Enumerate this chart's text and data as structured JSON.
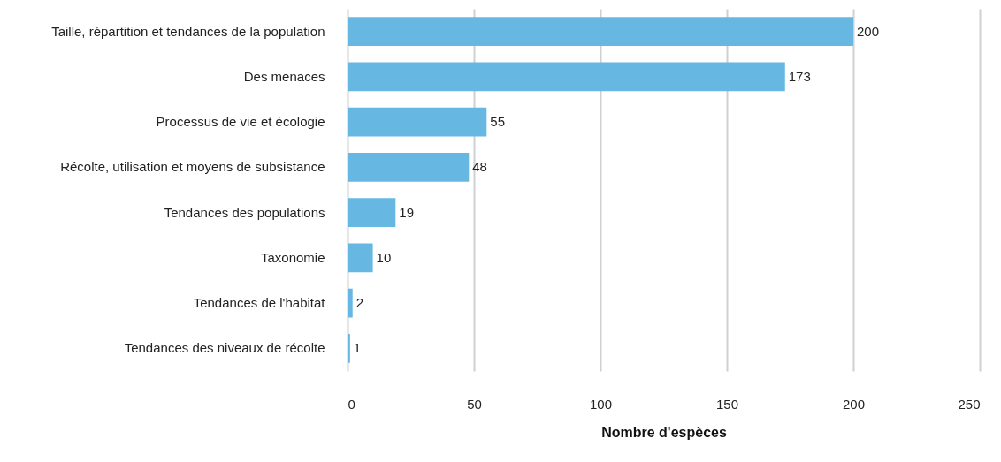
{
  "chart_data": {
    "type": "bar",
    "orientation": "horizontal",
    "xlabel": "Nombre d'espèces",
    "categories": [
      "Taille, répartition et tendances de la population",
      "Des menaces",
      "Processus de vie et écologie",
      "Récolte, utilisation et moyens de subsistance",
      "Tendances des populations",
      "Taxonomie",
      "Tendances de l'habitat",
      "Tendances des niveaux de récolte"
    ],
    "values": [
      200,
      173,
      55,
      48,
      19,
      10,
      2,
      1
    ],
    "color": "#66b8e3",
    "xlim": [
      0,
      250
    ],
    "xticks": [
      0,
      50,
      100,
      150,
      200,
      250
    ],
    "grid": "x",
    "data_labels": true
  }
}
